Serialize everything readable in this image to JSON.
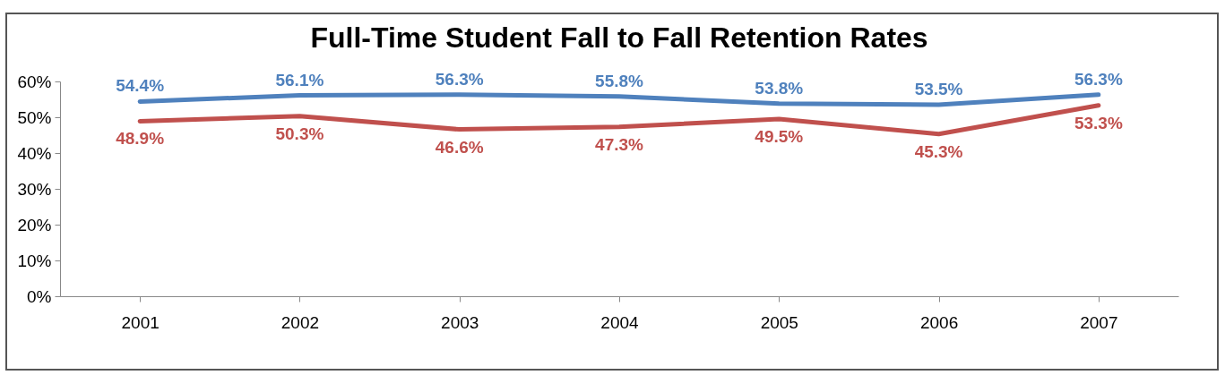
{
  "chart_data": {
    "type": "line",
    "title": "Full-Time Student Fall to Fall Retention Rates",
    "categories": [
      "2001",
      "2002",
      "2003",
      "2004",
      "2005",
      "2006",
      "2007"
    ],
    "series": [
      {
        "color": "#4f81bd",
        "values": [
          54.4,
          56.1,
          56.3,
          55.8,
          53.8,
          53.5,
          56.3
        ],
        "value_labels": [
          "54.4%",
          "56.1%",
          "56.3%",
          "55.8%",
          "53.8%",
          "53.5%",
          "56.3%"
        ]
      },
      {
        "color": "#c0504d",
        "values": [
          48.9,
          50.3,
          46.6,
          47.3,
          49.5,
          45.3,
          53.3
        ],
        "value_labels": [
          "48.9%",
          "50.3%",
          "46.6%",
          "47.3%",
          "49.5%",
          "45.3%",
          "53.3%"
        ]
      }
    ],
    "ylim": [
      0,
      60
    ],
    "yticks": [
      {
        "value": 0,
        "label": "0%"
      },
      {
        "value": 10,
        "label": "10%"
      },
      {
        "value": 20,
        "label": "20%"
      },
      {
        "value": 30,
        "label": "30%"
      },
      {
        "value": 40,
        "label": "40%"
      },
      {
        "value": 50,
        "label": "50%"
      },
      {
        "value": 60,
        "label": "60%"
      }
    ],
    "grid": false,
    "legend": false,
    "marker": "none",
    "line_style": "solid"
  }
}
